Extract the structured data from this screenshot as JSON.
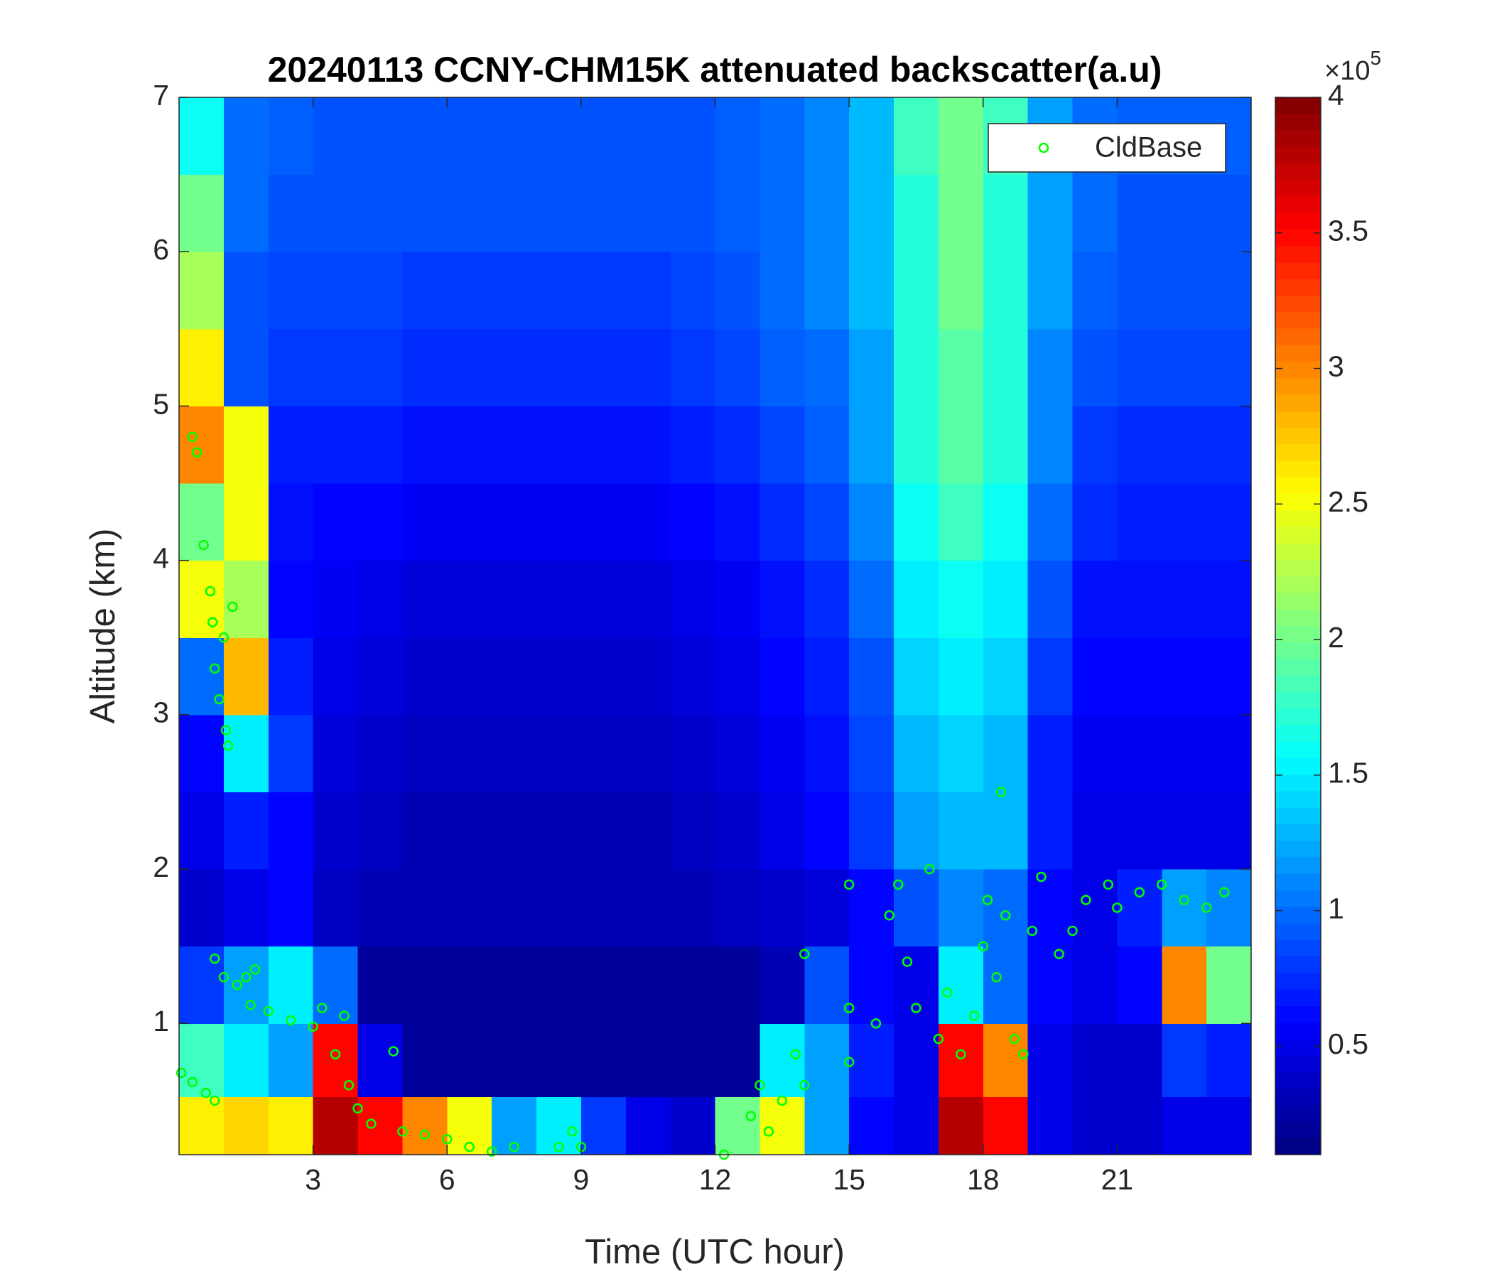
{
  "chart_data": {
    "type": "heatmap",
    "title": "20240113 CCNY-CHM15K attenuated backscatter(a.u)",
    "x_label": "Time (UTC hour)",
    "y_label": "Altitude (km)",
    "colormap": "jet",
    "xlim": [
      0,
      24
    ],
    "xticks": [
      3,
      6,
      9,
      12,
      15,
      18,
      21
    ],
    "ylim": [
      0.15,
      7
    ],
    "yticks": [
      1,
      2,
      3,
      4,
      5,
      6,
      7
    ],
    "clim": [
      0.1,
      4
    ],
    "cticks": [
      0.5,
      1,
      1.5,
      2,
      2.5,
      3,
      3.5,
      4
    ],
    "colorbar_scale_label": "×10",
    "colorbar_scale_exponent": "5",
    "x": [
      0.5,
      1.5,
      2.5,
      3.5,
      4.5,
      5.5,
      6.5,
      7.5,
      8.5,
      9.5,
      10.5,
      11.5,
      12.5,
      13.5,
      14.5,
      15.5,
      16.5,
      17.5,
      18.5,
      19.5,
      20.5,
      21.5,
      22.5,
      23.5
    ],
    "y": [
      0.3,
      0.75,
      1.25,
      1.75,
      2.25,
      2.75,
      3.25,
      3.75,
      4.25,
      4.75,
      5.25,
      5.75,
      6.25,
      6.75
    ],
    "z": [
      [
        2.6,
        2.7,
        2.6,
        3.8,
        3.5,
        3.0,
        2.5,
        1.2,
        1.5,
        0.8,
        0.5,
        0.4,
        2.0,
        2.5,
        1.2,
        0.6,
        0.5,
        3.8,
        3.5,
        0.5,
        0.4,
        0.4,
        0.5,
        0.5
      ],
      [
        1.8,
        1.5,
        1.2,
        3.5,
        0.5,
        0.2,
        0.2,
        0.2,
        0.2,
        0.2,
        0.2,
        0.2,
        0.2,
        1.5,
        1.2,
        0.7,
        0.5,
        3.5,
        3.0,
        0.5,
        0.4,
        0.4,
        0.8,
        0.7
      ],
      [
        0.8,
        1.2,
        1.5,
        1.0,
        0.2,
        0.2,
        0.2,
        0.2,
        0.2,
        0.2,
        0.2,
        0.2,
        0.2,
        0.3,
        0.9,
        0.6,
        0.5,
        1.5,
        1.0,
        0.6,
        0.5,
        0.6,
        3.0,
        2.0
      ],
      [
        0.4,
        0.5,
        0.6,
        0.35,
        0.3,
        0.3,
        0.3,
        0.3,
        0.3,
        0.3,
        0.3,
        0.3,
        0.35,
        0.4,
        0.45,
        0.6,
        0.9,
        1.1,
        1.0,
        0.6,
        0.5,
        0.7,
        1.2,
        1.1
      ],
      [
        0.5,
        0.7,
        0.6,
        0.4,
        0.35,
        0.3,
        0.3,
        0.3,
        0.3,
        0.3,
        0.3,
        0.35,
        0.4,
        0.5,
        0.6,
        0.8,
        1.2,
        1.3,
        1.3,
        0.7,
        0.5,
        0.5,
        0.5,
        0.5
      ],
      [
        0.6,
        1.5,
        0.8,
        0.45,
        0.4,
        0.35,
        0.35,
        0.35,
        0.35,
        0.35,
        0.35,
        0.4,
        0.45,
        0.55,
        0.65,
        0.85,
        1.3,
        1.4,
        1.3,
        0.7,
        0.55,
        0.55,
        0.55,
        0.55
      ],
      [
        1.0,
        2.8,
        0.7,
        0.5,
        0.45,
        0.4,
        0.4,
        0.4,
        0.4,
        0.4,
        0.4,
        0.45,
        0.5,
        0.6,
        0.7,
        0.9,
        1.4,
        1.5,
        1.4,
        0.8,
        0.6,
        0.6,
        0.6,
        0.6
      ],
      [
        2.5,
        2.2,
        0.6,
        0.55,
        0.5,
        0.45,
        0.45,
        0.45,
        0.45,
        0.45,
        0.45,
        0.5,
        0.55,
        0.65,
        0.75,
        1.0,
        1.5,
        1.6,
        1.5,
        0.9,
        0.65,
        0.65,
        0.65,
        0.65
      ],
      [
        2.0,
        2.5,
        0.65,
        0.6,
        0.6,
        0.55,
        0.55,
        0.55,
        0.55,
        0.55,
        0.55,
        0.6,
        0.65,
        0.75,
        0.85,
        1.1,
        1.6,
        1.8,
        1.6,
        1.0,
        0.75,
        0.7,
        0.7,
        0.7
      ],
      [
        3.0,
        2.5,
        0.7,
        0.7,
        0.7,
        0.65,
        0.65,
        0.65,
        0.65,
        0.65,
        0.65,
        0.7,
        0.75,
        0.85,
        0.95,
        1.2,
        1.7,
        1.9,
        1.7,
        1.1,
        0.8,
        0.75,
        0.75,
        0.75
      ],
      [
        2.6,
        0.9,
        0.8,
        0.8,
        0.8,
        0.75,
        0.75,
        0.75,
        0.75,
        0.75,
        0.75,
        0.8,
        0.85,
        0.95,
        1.0,
        1.2,
        1.7,
        1.9,
        1.7,
        1.1,
        0.9,
        0.85,
        0.85,
        0.85
      ],
      [
        2.2,
        0.9,
        0.85,
        0.85,
        0.85,
        0.8,
        0.8,
        0.8,
        0.8,
        0.8,
        0.8,
        0.85,
        0.9,
        1.0,
        1.1,
        1.3,
        1.7,
        2.0,
        1.7,
        1.2,
        0.95,
        0.9,
        0.9,
        0.9
      ],
      [
        2.0,
        1.0,
        0.9,
        0.9,
        0.9,
        0.9,
        0.9,
        0.9,
        0.9,
        0.9,
        0.9,
        0.9,
        0.95,
        1.0,
        1.1,
        1.3,
        1.7,
        2.0,
        1.7,
        1.2,
        1.0,
        0.9,
        0.9,
        0.9
      ],
      [
        1.6,
        1.0,
        0.95,
        0.9,
        0.9,
        0.9,
        0.9,
        0.9,
        0.9,
        0.9,
        0.9,
        0.9,
        0.95,
        1.0,
        1.1,
        1.3,
        1.8,
        2.0,
        1.8,
        1.2,
        1.0,
        0.95,
        0.95,
        0.95
      ]
    ],
    "legend": "upper right",
    "series": [
      {
        "name": "CldBase",
        "type": "scatter",
        "color": "#00ff00",
        "x": [
          0.05,
          0.3,
          0.6,
          0.8,
          0.3,
          0.4,
          0.55,
          0.7,
          0.75,
          0.8,
          0.9,
          1.0,
          1.05,
          1.1,
          1.2,
          0.8,
          1.0,
          1.3,
          1.5,
          1.7,
          1.6,
          2.0,
          2.5,
          3.0,
          3.2,
          3.5,
          3.7,
          3.8,
          4.0,
          4.3,
          4.8,
          5.0,
          5.5,
          6.0,
          6.5,
          7.0,
          7.5,
          8.5,
          8.8,
          9.0,
          12.2,
          12.8,
          13.0,
          13.2,
          13.5,
          13.8,
          14.0,
          14.0,
          15.0,
          15.0,
          15.0,
          15.6,
          15.9,
          16.1,
          16.3,
          16.5,
          16.8,
          17.0,
          17.2,
          17.5,
          17.8,
          18.0,
          18.1,
          18.3,
          18.4,
          18.5,
          18.7,
          18.9,
          19.1,
          19.3,
          19.7,
          20.0,
          20.3,
          20.8,
          21.0,
          21.5,
          22.0,
          22.5,
          23.0,
          23.4
        ],
        "values": [
          0.68,
          0.62,
          0.55,
          0.5,
          4.8,
          4.7,
          4.1,
          3.8,
          3.6,
          3.3,
          3.1,
          3.5,
          2.9,
          2.8,
          3.7,
          1.42,
          1.3,
          1.25,
          1.3,
          1.35,
          1.12,
          1.08,
          1.02,
          0.98,
          1.1,
          0.8,
          1.05,
          0.6,
          0.45,
          0.35,
          0.82,
          0.3,
          0.28,
          0.25,
          0.2,
          0.17,
          0.2,
          0.2,
          0.3,
          0.2,
          0.15,
          0.4,
          0.6,
          0.3,
          0.5,
          0.8,
          0.6,
          1.45,
          0.75,
          1.1,
          1.9,
          1.0,
          1.7,
          1.9,
          1.4,
          1.1,
          2.0,
          0.9,
          1.2,
          0.8,
          1.05,
          1.5,
          1.8,
          1.3,
          2.5,
          1.7,
          0.9,
          0.8,
          1.6,
          1.95,
          1.45,
          1.6,
          1.8,
          1.9,
          1.75,
          1.85,
          1.9,
          1.8,
          1.75,
          1.85
        ]
      }
    ]
  }
}
